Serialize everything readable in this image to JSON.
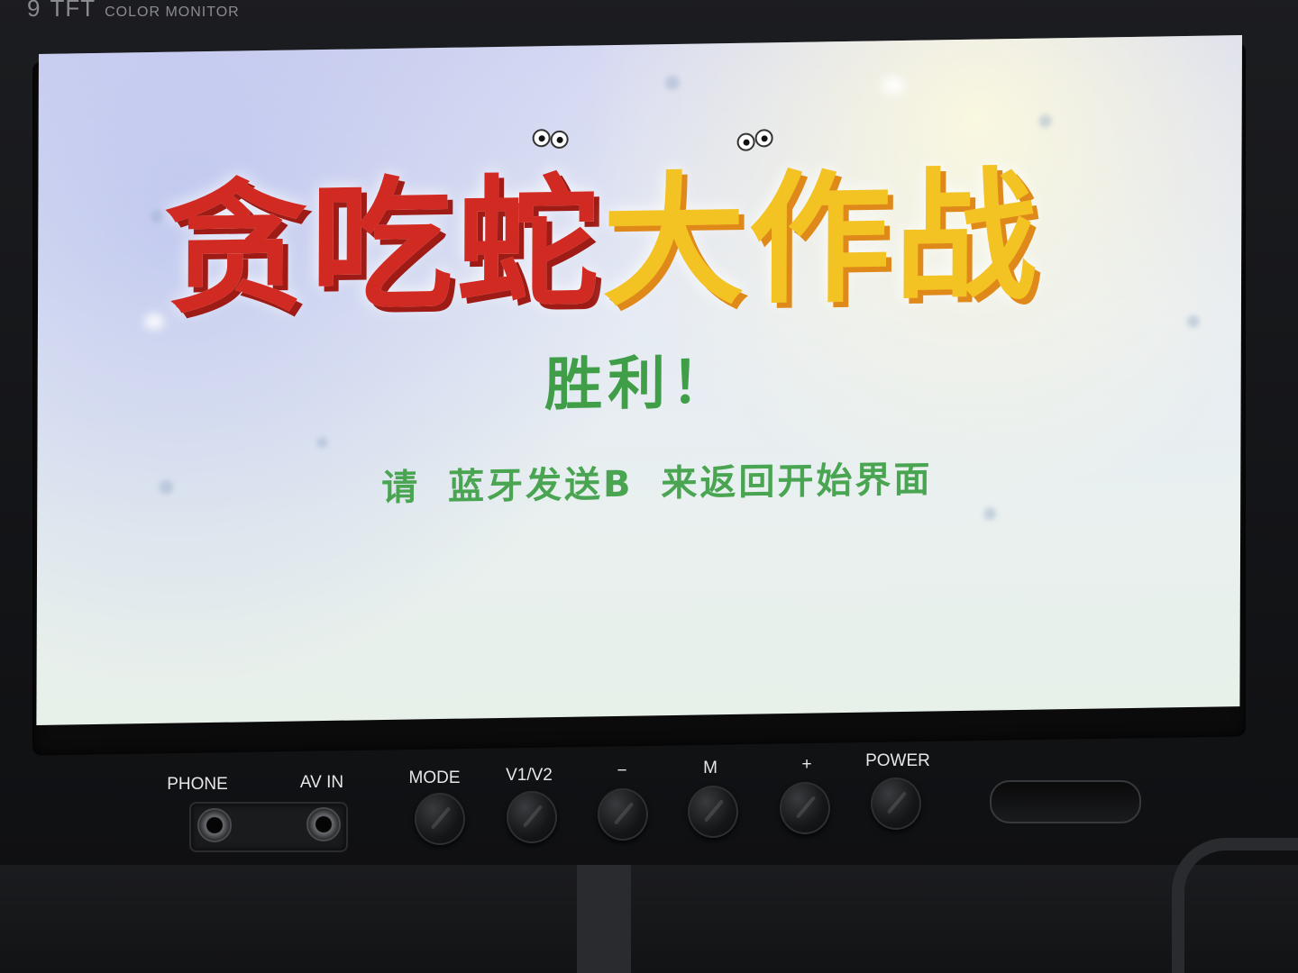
{
  "monitor": {
    "brand_size": "9",
    "brand_model": "TFT",
    "brand_caption": "COLOR MONITOR"
  },
  "screen": {
    "game_title_red": "贪吃蛇",
    "game_title_yellow": "大作战",
    "victory_text": "胜利！",
    "hint_text": "请 蓝牙发送B 来返回开始界面",
    "colors": {
      "title_red": "#d12a22",
      "title_yellow": "#f3c223",
      "text_green": "#3f9e47"
    }
  },
  "controls": {
    "phone_label": "PHONE",
    "av_in_label": "AV IN",
    "mode_label": "MODE",
    "v1v2_label": "V1/V2",
    "minus_label": "−",
    "m_label": "M",
    "plus_label": "+",
    "power_label": "POWER"
  }
}
